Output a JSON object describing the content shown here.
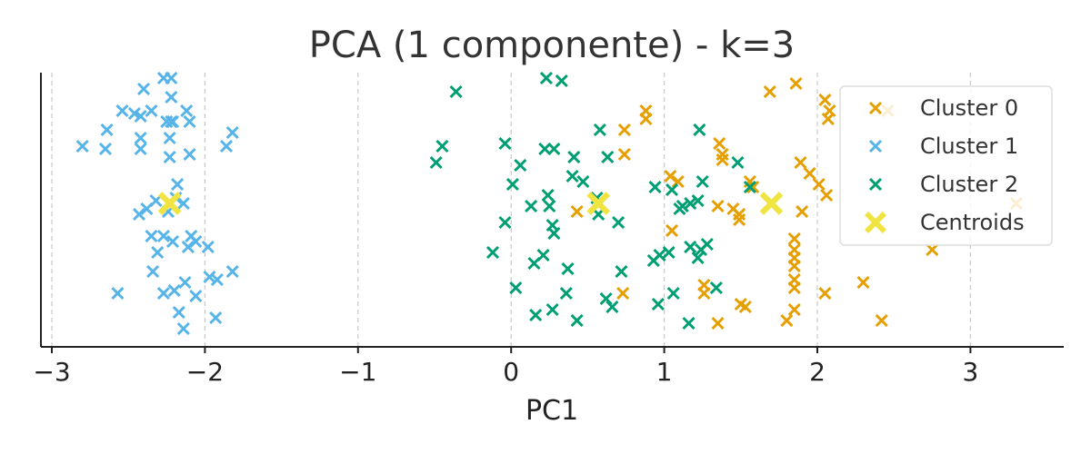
{
  "chart_data": {
    "type": "scatter",
    "title": "PCA (1 componente) - k=3",
    "xlabel": "PC1",
    "ylabel": "",
    "xlim": [
      -3.1,
      3.6
    ],
    "ylim": [
      0,
      1
    ],
    "xticks": [
      -3,
      -2,
      -1,
      0,
      1,
      2,
      3
    ],
    "xtick_labels": [
      "−3",
      "−2",
      "−1",
      "0",
      "1",
      "2",
      "3"
    ],
    "grid": "vertical dashed",
    "legend_position": "top-right",
    "series": [
      {
        "name": "Cluster 0",
        "color": "#E69F00",
        "marker": "x",
        "points": [
          [
            1.86,
            0.94
          ],
          [
            1.69,
            0.91
          ],
          [
            2.05,
            0.88
          ],
          [
            2.08,
            0.84
          ],
          [
            2.07,
            0.81
          ],
          [
            2.46,
            0.84
          ],
          [
            0.88,
            0.84
          ],
          [
            0.88,
            0.81
          ],
          [
            0.74,
            0.77
          ],
          [
            0.74,
            0.68
          ],
          [
            1.36,
            0.72
          ],
          [
            1.38,
            0.68
          ],
          [
            1.38,
            0.66
          ],
          [
            1.89,
            0.65
          ],
          [
            1.95,
            0.61
          ],
          [
            1.04,
            0.6
          ],
          [
            1.09,
            0.58
          ],
          [
            1.56,
            0.58
          ],
          [
            1.58,
            0.56
          ],
          [
            2.01,
            0.57
          ],
          [
            2.06,
            0.53
          ],
          [
            1.35,
            0.49
          ],
          [
            1.45,
            0.48
          ],
          [
            1.49,
            0.46
          ],
          [
            1.49,
            0.44
          ],
          [
            1.9,
            0.47
          ],
          [
            0.43,
            0.47
          ],
          [
            1.05,
            0.4
          ],
          [
            1.85,
            0.37
          ],
          [
            1.85,
            0.33
          ],
          [
            1.85,
            0.3
          ],
          [
            2.75,
            0.33
          ],
          [
            1.85,
            0.27
          ],
          [
            1.85,
            0.22
          ],
          [
            1.85,
            0.19
          ],
          [
            0.73,
            0.17
          ],
          [
            1.26,
            0.2
          ],
          [
            1.26,
            0.17
          ],
          [
            2.05,
            0.17
          ],
          [
            2.3,
            0.21
          ],
          [
            1.5,
            0.13
          ],
          [
            1.53,
            0.12
          ],
          [
            1.85,
            0.11
          ],
          [
            1.8,
            0.07
          ],
          [
            1.35,
            0.06
          ],
          [
            2.42,
            0.07
          ],
          [
            3.3,
            0.5
          ]
        ]
      },
      {
        "name": "Cluster 1",
        "color": "#56B4E9",
        "marker": "x",
        "points": [
          [
            -2.27,
            0.96
          ],
          [
            -2.22,
            0.96
          ],
          [
            -2.4,
            0.92
          ],
          [
            -2.22,
            0.89
          ],
          [
            -2.54,
            0.84
          ],
          [
            -2.46,
            0.83
          ],
          [
            -2.35,
            0.84
          ],
          [
            -2.12,
            0.84
          ],
          [
            -2.42,
            0.82
          ],
          [
            -2.25,
            0.8
          ],
          [
            -2.21,
            0.8
          ],
          [
            -2.22,
            0.8
          ],
          [
            -2.1,
            0.8
          ],
          [
            -2.64,
            0.77
          ],
          [
            -1.82,
            0.76
          ],
          [
            -2.42,
            0.74
          ],
          [
            -2.23,
            0.74
          ],
          [
            -2.8,
            0.71
          ],
          [
            -2.65,
            0.7
          ],
          [
            -2.42,
            0.7
          ],
          [
            -1.86,
            0.71
          ],
          [
            -2.23,
            0.67
          ],
          [
            -2.1,
            0.68
          ],
          [
            -2.18,
            0.57
          ],
          [
            -2.32,
            0.51
          ],
          [
            -2.19,
            0.52
          ],
          [
            -2.14,
            0.5
          ],
          [
            -2.38,
            0.48
          ],
          [
            -2.43,
            0.46
          ],
          [
            -2.24,
            0.47
          ],
          [
            -2.35,
            0.38
          ],
          [
            -2.27,
            0.38
          ],
          [
            -2.09,
            0.38
          ],
          [
            -2.06,
            0.36
          ],
          [
            -2.21,
            0.36
          ],
          [
            -2.31,
            0.32
          ],
          [
            -2.11,
            0.34
          ],
          [
            -1.98,
            0.34
          ],
          [
            -2.34,
            0.25
          ],
          [
            -1.82,
            0.25
          ],
          [
            -1.92,
            0.22
          ],
          [
            -1.97,
            0.23
          ],
          [
            -2.57,
            0.17
          ],
          [
            -2.27,
            0.17
          ],
          [
            -2.2,
            0.18
          ],
          [
            -2.13,
            0.21
          ],
          [
            -2.06,
            0.16
          ],
          [
            -2.17,
            0.1
          ],
          [
            -1.93,
            0.08
          ],
          [
            -2.14,
            0.04
          ]
        ]
      },
      {
        "name": "Cluster 2",
        "color": "#009E73",
        "marker": "x",
        "points": [
          [
            0.23,
            0.96
          ],
          [
            0.33,
            0.95
          ],
          [
            -0.36,
            0.91
          ],
          [
            -0.45,
            0.71
          ],
          [
            -0.49,
            0.65
          ],
          [
            -0.04,
            0.72
          ],
          [
            0.06,
            0.64
          ],
          [
            0.22,
            0.7
          ],
          [
            0.28,
            0.7
          ],
          [
            0.41,
            0.67
          ],
          [
            0.58,
            0.77
          ],
          [
            0.63,
            0.67
          ],
          [
            0.4,
            0.6
          ],
          [
            0.47,
            0.58
          ],
          [
            0.01,
            0.57
          ],
          [
            0.24,
            0.53
          ],
          [
            0.25,
            0.49
          ],
          [
            0.13,
            0.49
          ],
          [
            0.56,
            0.52
          ],
          [
            0.57,
            0.46
          ],
          [
            0.94,
            0.56
          ],
          [
            1.05,
            0.55
          ],
          [
            1.25,
            0.58
          ],
          [
            1.23,
            0.77
          ],
          [
            1.48,
            0.65
          ],
          [
            1.56,
            0.56
          ],
          [
            1.12,
            0.49
          ],
          [
            1.17,
            0.5
          ],
          [
            1.22,
            0.51
          ],
          [
            1.1,
            0.48
          ],
          [
            0.7,
            0.43
          ],
          [
            0.27,
            0.42
          ],
          [
            0.28,
            0.39
          ],
          [
            -0.04,
            0.43
          ],
          [
            -0.12,
            0.32
          ],
          [
            0.15,
            0.28
          ],
          [
            0.21,
            0.31
          ],
          [
            0.37,
            0.26
          ],
          [
            0.72,
            0.25
          ],
          [
            0.93,
            0.29
          ],
          [
            0.97,
            0.31
          ],
          [
            1.03,
            0.32
          ],
          [
            1.17,
            0.34
          ],
          [
            1.24,
            0.33
          ],
          [
            1.28,
            0.35
          ],
          [
            1.22,
            0.3
          ],
          [
            0.03,
            0.19
          ],
          [
            0.36,
            0.17
          ],
          [
            0.62,
            0.15
          ],
          [
            0.66,
            0.12
          ],
          [
            0.96,
            0.13
          ],
          [
            1.06,
            0.17
          ],
          [
            1.34,
            0.19
          ],
          [
            0.16,
            0.09
          ],
          [
            0.27,
            0.11
          ],
          [
            0.43,
            0.07
          ],
          [
            1.16,
            0.06
          ]
        ]
      },
      {
        "name": "Centroids",
        "color": "#F0E442",
        "marker": "X",
        "points": [
          [
            -2.23,
            0.5
          ],
          [
            0.57,
            0.5
          ],
          [
            1.7,
            0.5
          ]
        ]
      }
    ]
  }
}
